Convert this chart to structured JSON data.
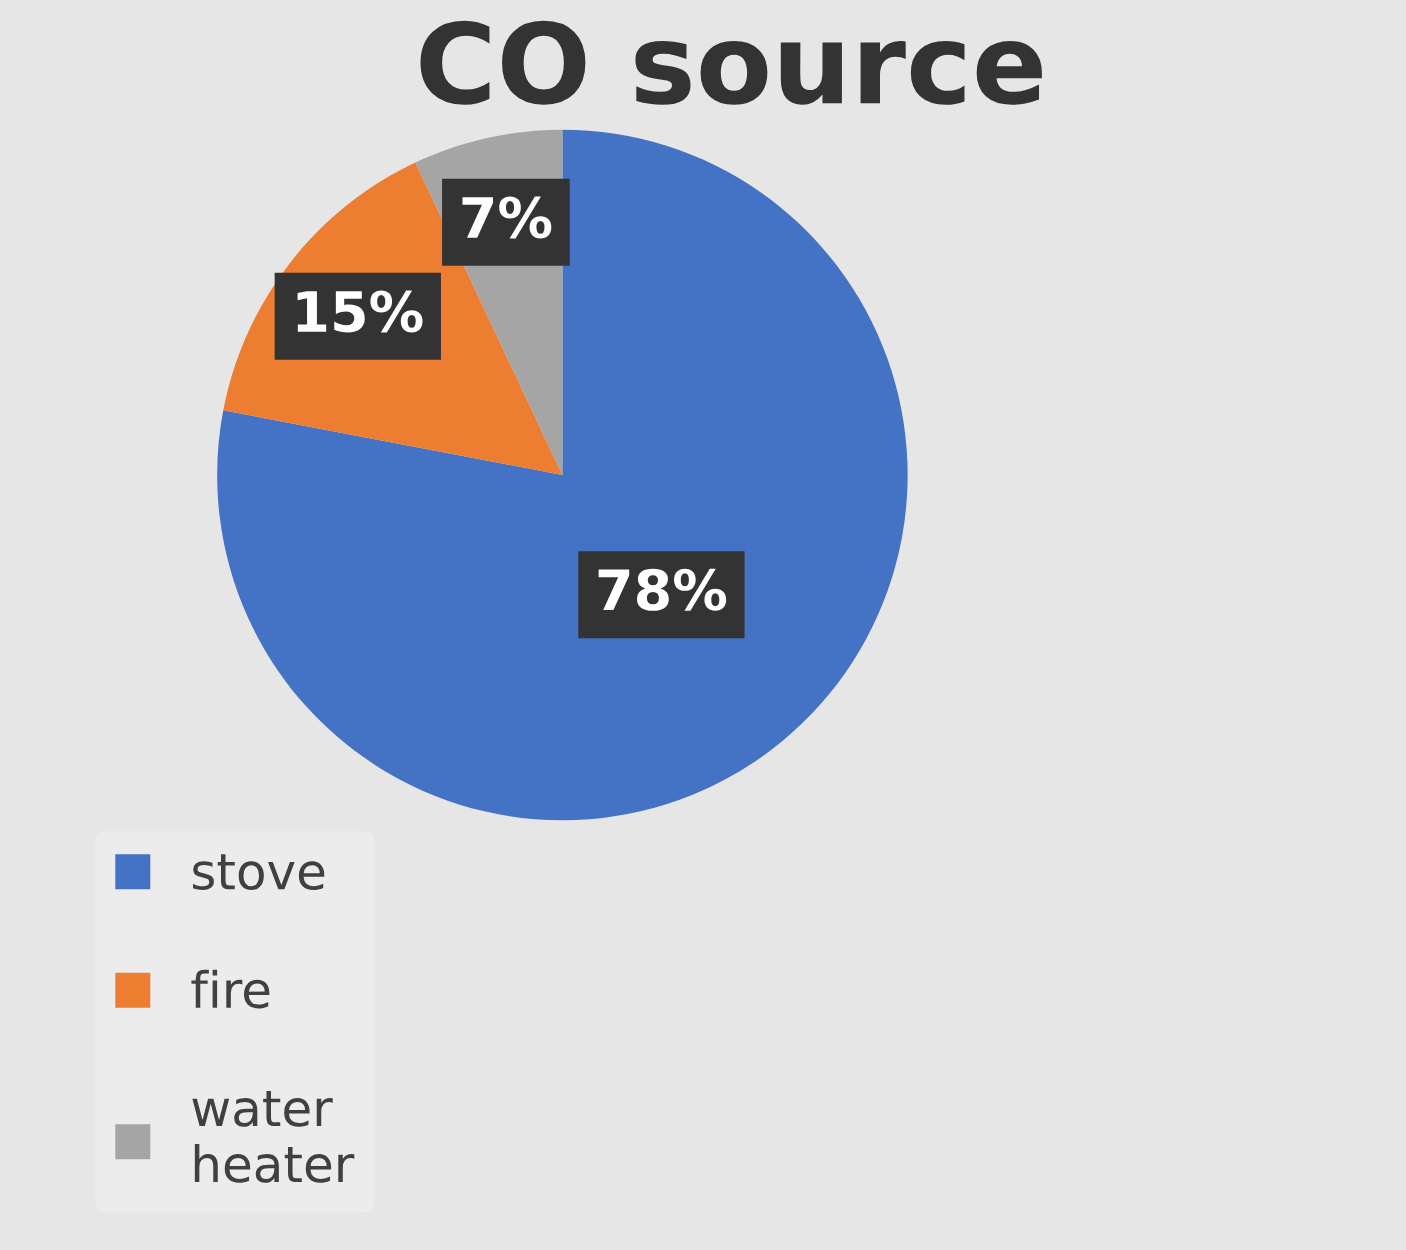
{
  "chart_data": {
    "type": "pie",
    "title": "CO source",
    "categories": [
      "stove",
      "fire",
      "water heater"
    ],
    "values": [
      78,
      15,
      7
    ],
    "colors": [
      "#4472c4",
      "#ed7d31",
      "#a5a5a5"
    ],
    "value_labels": [
      "78%",
      "15%",
      "7%"
    ],
    "legend": "bottom left"
  }
}
